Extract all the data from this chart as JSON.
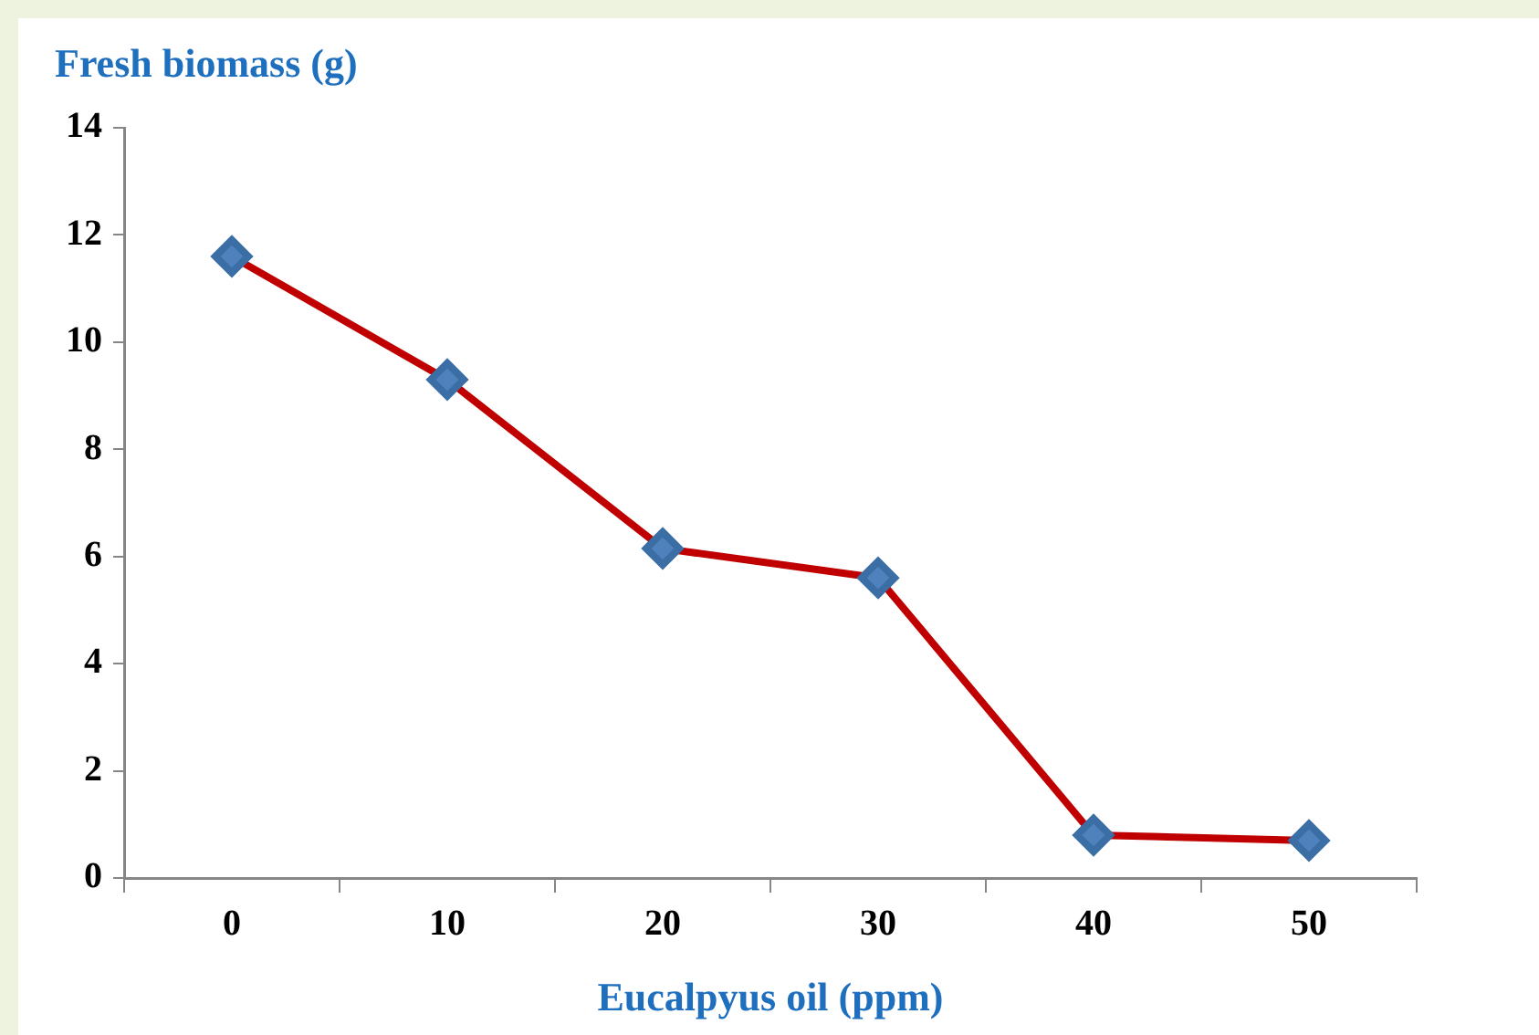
{
  "chart_data": {
    "type": "line",
    "xlabel": "Eucalpyus oil (ppm)",
    "ylabel": "Fresh biomass (g)",
    "categories": [
      "0",
      "10",
      "20",
      "30",
      "40",
      "50"
    ],
    "series": [
      {
        "color": "#c00000",
        "values": [
          11.6,
          9.3,
          6.15,
          5.6,
          0.8,
          0.7
        ]
      }
    ],
    "ylim": [
      0,
      14
    ],
    "yticks": [
      0,
      2,
      4,
      6,
      8,
      10,
      12,
      14
    ],
    "marker": "diamond",
    "line_style": "solid",
    "legend": false
  }
}
